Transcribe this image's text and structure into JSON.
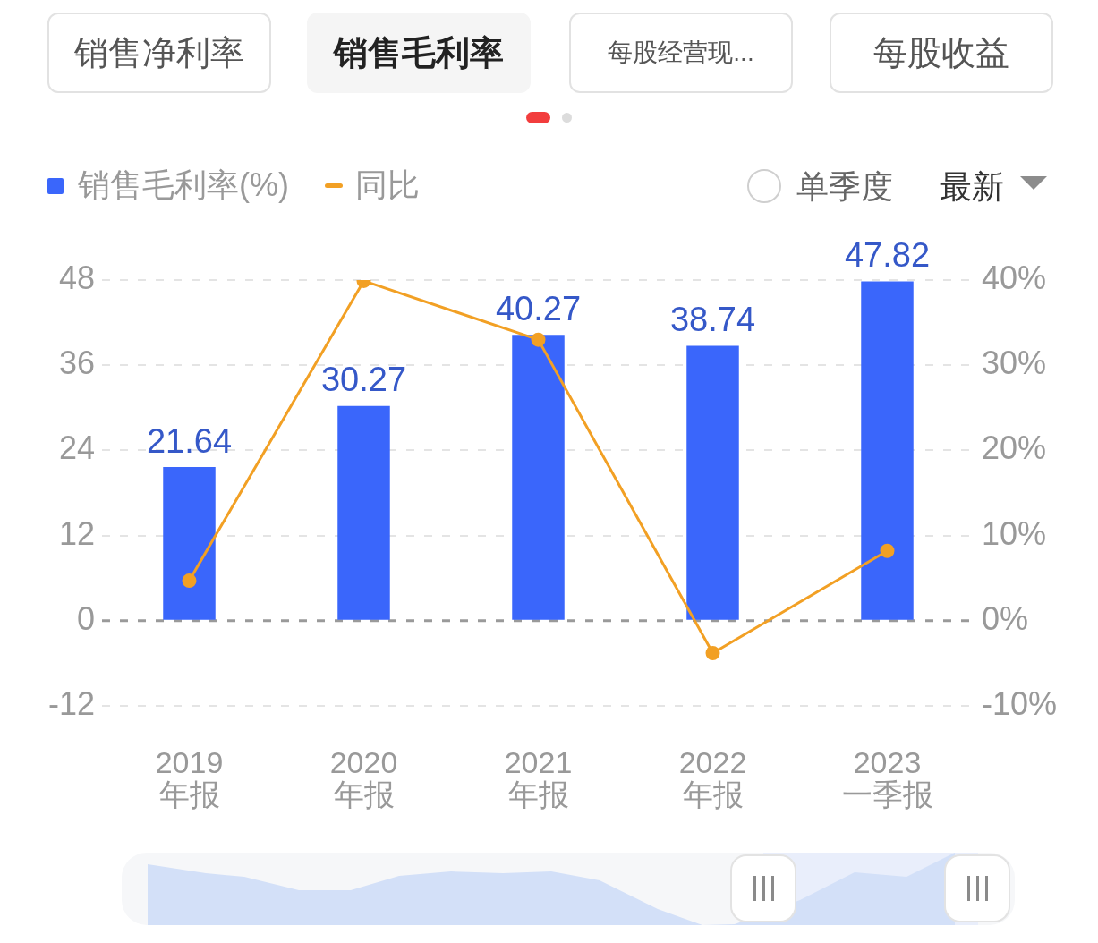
{
  "chart_data": {
    "type": "bar",
    "title": "销售毛利率",
    "categories": [
      "2019\n年报",
      "2020\n年报",
      "2021\n年报",
      "2022\n年报",
      "2023\n一季报"
    ],
    "series": [
      {
        "name": "销售毛利率(%)",
        "color": "#3a66fb",
        "values": [
          21.64,
          30.27,
          40.27,
          38.74,
          47.82
        ],
        "value_labels": [
          "21.64",
          "30.27",
          "40.27",
          "38.74",
          "47.82"
        ]
      },
      {
        "name": "同比",
        "type": "line",
        "axis": "y2",
        "color": "#f2a024",
        "values": [
          4.7,
          39.9,
          33.0,
          -3.8,
          8.2
        ]
      }
    ],
    "ylim": [
      -12,
      48
    ],
    "yticks": [
      -12,
      0,
      12,
      24,
      36,
      48
    ],
    "y2lim": [
      -10,
      40
    ],
    "y2ticks": [
      {
        "value": -10,
        "label": "-10%"
      },
      {
        "value": 0,
        "label": "0%"
      },
      {
        "value": 10,
        "label": "10%"
      },
      {
        "value": 20,
        "label": "20%"
      },
      {
        "value": 30,
        "label": "30%"
      },
      {
        "value": 40,
        "label": "40%"
      }
    ],
    "ref_lines": [
      {
        "axis": "y",
        "value": 0,
        "color": "#9a9a9a",
        "line_style": "dashed"
      }
    ],
    "grid": "y",
    "legend": "top left",
    "marker": "circle",
    "annotations": [
      "销售净利率",
      "每股经营现...",
      "每股收益",
      "单季度",
      "最新"
    ]
  }
}
